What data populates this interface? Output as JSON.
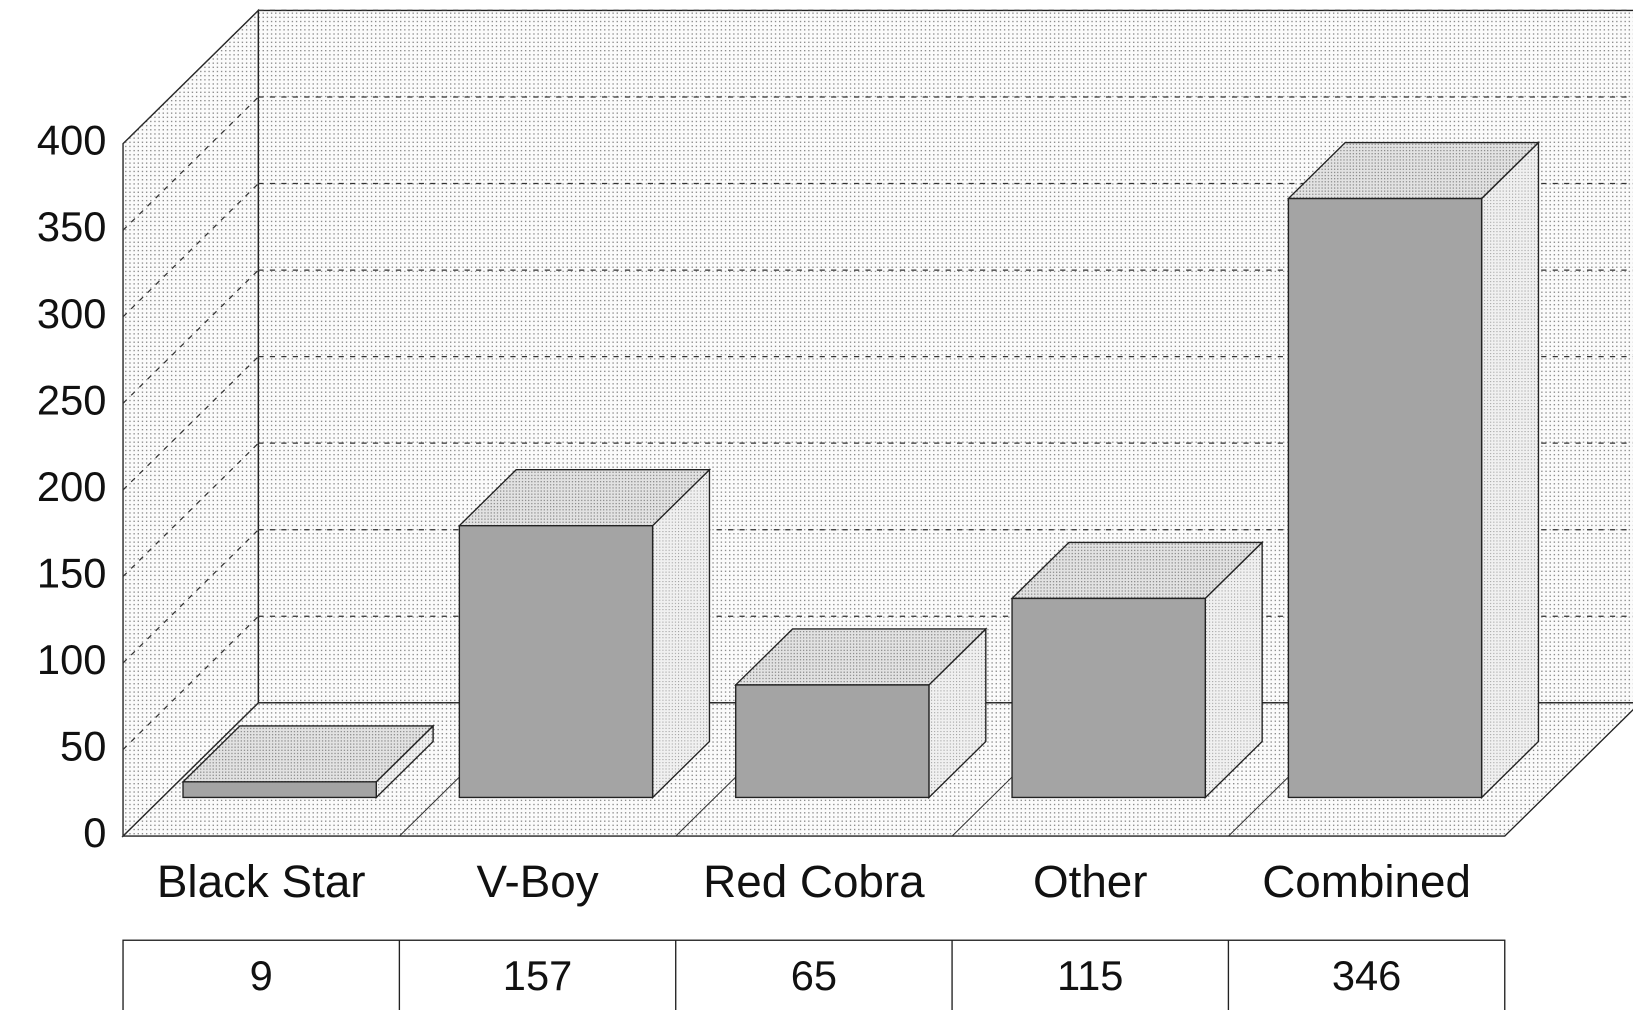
{
  "chart_data": {
    "type": "bar3d",
    "categories": [
      "Black Star",
      "V-Boy",
      "Red Cobra",
      "Other",
      "Combined"
    ],
    "values": [
      9,
      157,
      65,
      115,
      346
    ],
    "color": "#a4a4a4",
    "ylim": [
      0,
      400
    ],
    "yticks": [
      0,
      50,
      100,
      150,
      200,
      250,
      300,
      350,
      400
    ],
    "grid": true
  }
}
